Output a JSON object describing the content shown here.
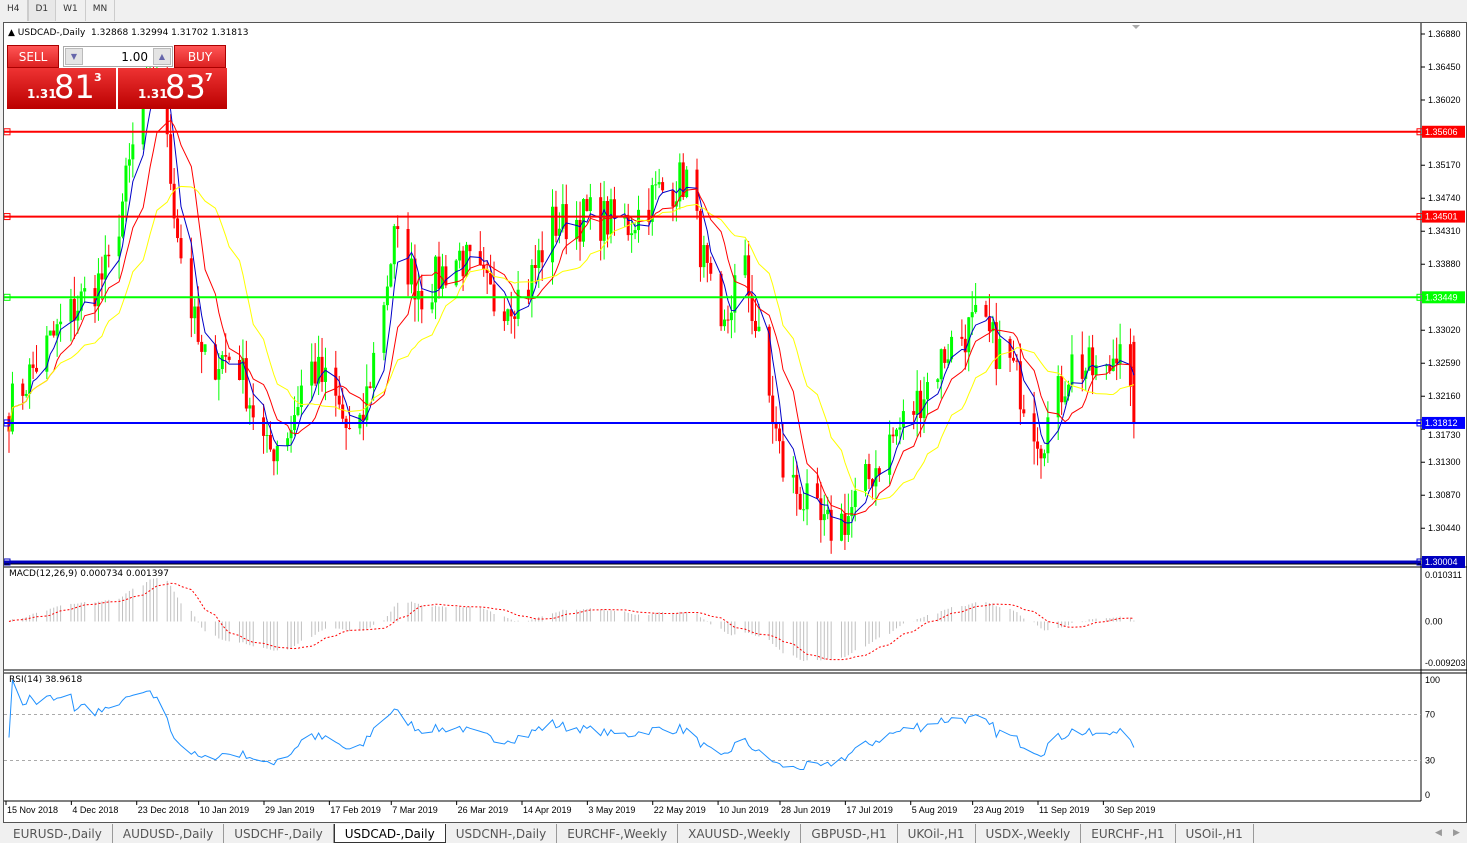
{
  "timeframes": [
    {
      "label": "H4",
      "active": false
    },
    {
      "label": "D1",
      "active": true
    },
    {
      "label": "W1",
      "active": false
    },
    {
      "label": "MN",
      "active": false
    }
  ],
  "header": {
    "symbol": "USDCAD-,Daily",
    "ohlc": "1.32868 1.32994 1.31702 1.31813"
  },
  "trade_panel": {
    "sell_label": "SELL",
    "buy_label": "BUY",
    "lot": "1.00",
    "sell_big": "1.31",
    "sell_main": "81",
    "sell_sup": "3",
    "buy_big": "1.31",
    "buy_main": "83",
    "buy_sup": "7"
  },
  "colors": {
    "bull": "#00ff00",
    "bear": "#ff0000",
    "ma_fast": "#0000c8",
    "ma_mid": "#ff0000",
    "ma_slow": "#ffff00",
    "rsi": "#1e90ff",
    "macd_hist": "#c0c0c0",
    "macd_signal": "#ff0000"
  },
  "chart_data": {
    "type": "candlestick",
    "symbol": "USDCAD",
    "timeframe": "Daily",
    "ylim": [
      1.3,
      1.37
    ],
    "price_ticks": [
      "1.36880",
      "1.36450",
      "1.36020",
      "1.35170",
      "1.34740",
      "1.34310",
      "1.33880",
      "1.33020",
      "1.32590",
      "1.32160",
      "1.31730",
      "1.31300",
      "1.30870",
      "1.30440"
    ],
    "hlines": [
      {
        "price": 1.35606,
        "label": "1.35606",
        "color": "#ff0000"
      },
      {
        "price": 1.34501,
        "label": "1.34501",
        "color": "#ff0000"
      },
      {
        "price": 1.33449,
        "label": "1.33449",
        "color": "#00ff00"
      },
      {
        "price": 1.31812,
        "label": "1.31812",
        "color": "#0000ff"
      },
      {
        "price": 1.30004,
        "label": "1.30004",
        "color": "#0000c0"
      }
    ],
    "x_ticks": [
      "15 Nov 2018",
      "4 Dec 2018",
      "23 Dec 2018",
      "10 Jan 2019",
      "29 Jan 2019",
      "17 Feb 2019",
      "7 Mar 2019",
      "26 Mar 2019",
      "14 Apr 2019",
      "3 May 2019",
      "22 May 2019",
      "10 Jun 2019",
      "28 Jun 2019",
      "17 Jul 2019",
      "5 Aug 2019",
      "23 Aug 2019",
      "11 Sep 2019",
      "30 Sep 2019"
    ],
    "x_tick_dates": [
      "2018-11-15",
      "2018-12-04",
      "2018-12-23",
      "2019-01-10",
      "2019-01-29",
      "2019-02-17",
      "2019-03-07",
      "2019-03-26",
      "2019-04-14",
      "2019-05-03",
      "2019-05-22",
      "2019-06-10",
      "2019-06-28",
      "2019-07-17",
      "2019-08-05",
      "2019-08-23",
      "2019-09-11",
      "2019-09-30"
    ],
    "close_approx": [
      [
        "2018-11-15",
        1.32
      ],
      [
        "2018-11-26",
        1.328
      ],
      [
        "2018-12-04",
        1.333
      ],
      [
        "2018-12-14",
        1.338
      ],
      [
        "2018-12-23",
        1.358
      ],
      [
        "2018-12-28",
        1.364
      ],
      [
        "2019-01-04",
        1.34
      ],
      [
        "2019-01-10",
        1.326
      ],
      [
        "2019-01-20",
        1.327
      ],
      [
        "2019-01-29",
        1.314
      ],
      [
        "2019-02-05",
        1.318
      ],
      [
        "2019-02-10",
        1.326
      ],
      [
        "2019-02-17",
        1.322
      ],
      [
        "2019-02-24",
        1.314
      ],
      [
        "2019-03-07",
        1.342
      ],
      [
        "2019-03-15",
        1.335
      ],
      [
        "2019-03-26",
        1.34
      ],
      [
        "2019-04-05",
        1.334
      ],
      [
        "2019-04-14",
        1.335
      ],
      [
        "2019-04-22",
        1.344
      ],
      [
        "2019-05-03",
        1.345
      ],
      [
        "2019-05-14",
        1.344
      ],
      [
        "2019-05-22",
        1.348
      ],
      [
        "2019-05-31",
        1.35
      ],
      [
        "2019-06-10",
        1.328
      ],
      [
        "2019-06-16",
        1.34
      ],
      [
        "2019-06-28",
        1.312
      ],
      [
        "2019-07-10",
        1.304
      ],
      [
        "2019-07-17",
        1.306
      ],
      [
        "2019-07-28",
        1.315
      ],
      [
        "2019-08-05",
        1.32
      ],
      [
        "2019-08-15",
        1.328
      ],
      [
        "2019-08-23",
        1.331
      ],
      [
        "2019-09-02",
        1.326
      ],
      [
        "2019-09-11",
        1.316
      ],
      [
        "2019-09-20",
        1.326
      ],
      [
        "2019-09-30",
        1.324
      ],
      [
        "2019-10-04",
        1.33
      ],
      [
        "2019-10-08",
        1.318
      ]
    ],
    "macd": {
      "label": "MACD(12,26,9) 0.000734 0.001397",
      "ticks": [
        "0.010311",
        "0.00",
        "-0.009203"
      ],
      "ylim": [
        -0.009203,
        0.010311
      ]
    },
    "rsi": {
      "label": "RSI(14) 38.9618",
      "ticks": [
        "100",
        "70",
        "30",
        "0"
      ],
      "levels": [
        70,
        30
      ]
    }
  },
  "tabs": [
    {
      "label": "EURUSD-,Daily"
    },
    {
      "label": "AUDUSD-,Daily"
    },
    {
      "label": "USDCHF-,Daily"
    },
    {
      "label": "USDCAD-,Daily",
      "active": true
    },
    {
      "label": "USDCNH-,Daily"
    },
    {
      "label": "EURCHF-,Weekly"
    },
    {
      "label": "XAUUSD-,Weekly"
    },
    {
      "label": "GBPUSD-,H1"
    },
    {
      "label": "UKOil-,H1"
    },
    {
      "label": "USDX-,Weekly"
    },
    {
      "label": "EURCHF-,H1"
    },
    {
      "label": "USOil-,H1"
    }
  ]
}
